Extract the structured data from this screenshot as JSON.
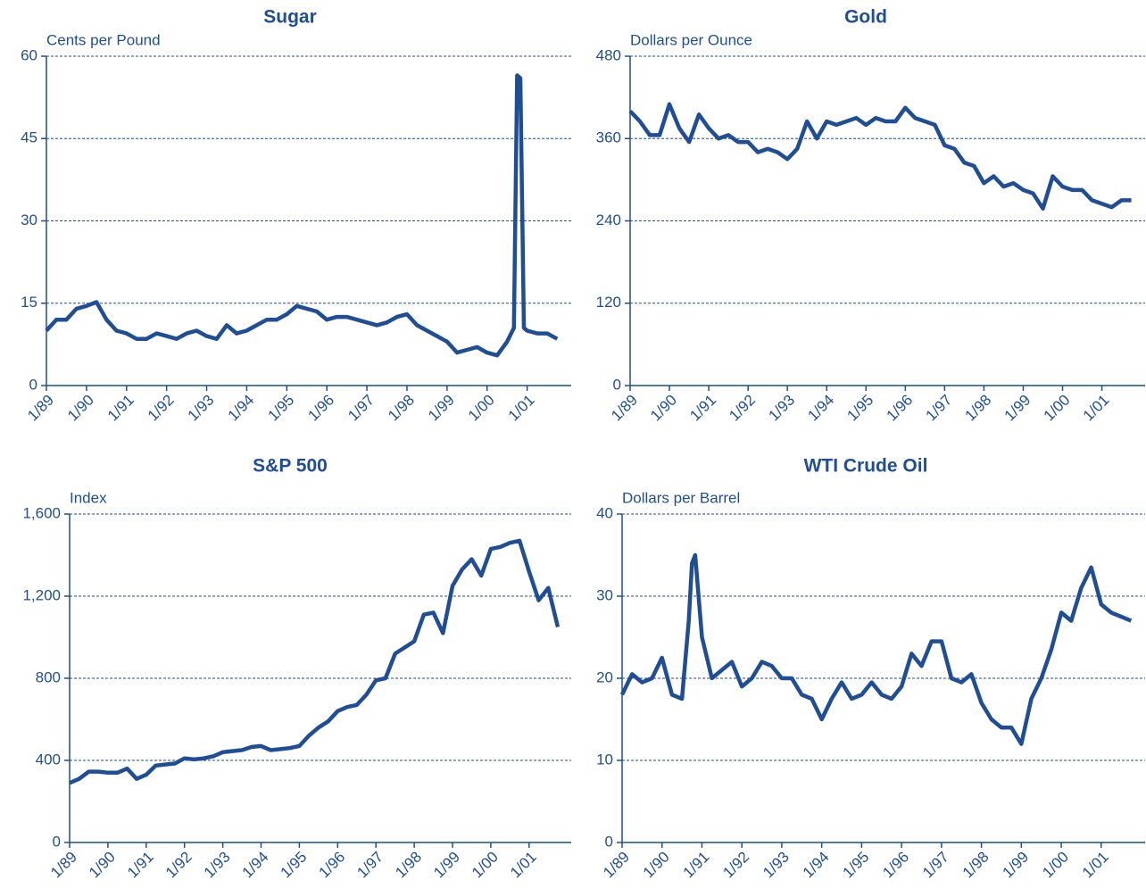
{
  "chart_data": [
    {
      "type": "line",
      "title": "Sugar",
      "y_label": "Cents per Pound",
      "color": "#1f4e96",
      "grid": true,
      "xlim": [
        1989,
        2002.1
      ],
      "ylim": [
        0,
        60
      ],
      "yticks": [
        0,
        15,
        30,
        45,
        60
      ],
      "xticks": [
        {
          "value": 1989,
          "label": "1/89"
        },
        {
          "value": 1990,
          "label": "1/90"
        },
        {
          "value": 1991,
          "label": "1/91"
        },
        {
          "value": 1992,
          "label": "1/92"
        },
        {
          "value": 1993,
          "label": "1/93"
        },
        {
          "value": 1994,
          "label": "1/94"
        },
        {
          "value": 1995,
          "label": "1/95"
        },
        {
          "value": 1996,
          "label": "1/96"
        },
        {
          "value": 1997,
          "label": "1/97"
        },
        {
          "value": 1998,
          "label": "1/98"
        },
        {
          "value": 1999,
          "label": "1/99"
        },
        {
          "value": 2000,
          "label": "1/00"
        },
        {
          "value": 2001,
          "label": "1/01"
        }
      ],
      "x": [
        1989,
        1989.25,
        1989.5,
        1989.75,
        1990,
        1990.25,
        1990.5,
        1990.75,
        1991,
        1991.25,
        1991.5,
        1991.75,
        1992,
        1992.25,
        1992.5,
        1992.75,
        1993,
        1993.25,
        1993.5,
        1993.75,
        1994,
        1994.25,
        1994.5,
        1994.75,
        1995,
        1995.25,
        1995.5,
        1995.75,
        1996,
        1996.25,
        1996.5,
        1996.75,
        1997,
        1997.25,
        1997.5,
        1997.75,
        1998,
        1998.25,
        1998.5,
        1998.75,
        1999,
        1999.25,
        1999.5,
        1999.75,
        2000,
        2000.25,
        2000.5,
        2000.67,
        2000.75,
        2000.83,
        2000.92,
        2001,
        2001.25,
        2001.5,
        2001.75
      ],
      "values": [
        10,
        12,
        12,
        14,
        14.5,
        15.2,
        12,
        10,
        9.5,
        8.5,
        8.5,
        9.5,
        9,
        8.5,
        9.5,
        10,
        9,
        8.5,
        11,
        9.5,
        10,
        11,
        12,
        12,
        13,
        14.5,
        14,
        13.5,
        12,
        12.5,
        12.5,
        12,
        11.5,
        11,
        11.5,
        12.5,
        13,
        11,
        10,
        9,
        8,
        6,
        6.5,
        7,
        6,
        5.5,
        8,
        10.5,
        56.5,
        56,
        10.5,
        10,
        9.5,
        9.5,
        8.5
      ]
    },
    {
      "type": "line",
      "title": "Gold",
      "y_label": "Dollars per Ounce",
      "color": "#1f4e96",
      "grid": true,
      "xlim": [
        1989,
        2002.1
      ],
      "ylim": [
        0,
        480
      ],
      "yticks": [
        0,
        120,
        240,
        360,
        480
      ],
      "xticks": [
        {
          "value": 1989,
          "label": "1/89"
        },
        {
          "value": 1990,
          "label": "1/90"
        },
        {
          "value": 1991,
          "label": "1/91"
        },
        {
          "value": 1992,
          "label": "1/92"
        },
        {
          "value": 1993,
          "label": "1/93"
        },
        {
          "value": 1994,
          "label": "1/94"
        },
        {
          "value": 1995,
          "label": "1/95"
        },
        {
          "value": 1996,
          "label": "1/96"
        },
        {
          "value": 1997,
          "label": "1/97"
        },
        {
          "value": 1998,
          "label": "1/98"
        },
        {
          "value": 1999,
          "label": "1/99"
        },
        {
          "value": 2000,
          "label": "1/00"
        },
        {
          "value": 2001,
          "label": "1/01"
        }
      ],
      "x": [
        1989,
        1989.25,
        1989.5,
        1989.75,
        1990,
        1990.25,
        1990.5,
        1990.75,
        1991,
        1991.25,
        1991.5,
        1991.75,
        1992,
        1992.25,
        1992.5,
        1992.75,
        1993,
        1993.25,
        1993.5,
        1993.75,
        1994,
        1994.25,
        1994.5,
        1994.75,
        1995,
        1995.25,
        1995.5,
        1995.75,
        1996,
        1996.25,
        1996.5,
        1996.75,
        1997,
        1997.25,
        1997.5,
        1997.75,
        1998,
        1998.25,
        1998.5,
        1998.75,
        1999,
        1999.25,
        1999.5,
        1999.75,
        2000,
        2000.25,
        2000.5,
        2000.75,
        2001,
        2001.25,
        2001.5,
        2001.75
      ],
      "values": [
        400,
        385,
        365,
        365,
        410,
        375,
        355,
        395,
        375,
        360,
        365,
        355,
        355,
        340,
        345,
        340,
        330,
        345,
        385,
        360,
        385,
        380,
        385,
        390,
        380,
        390,
        385,
        385,
        405,
        390,
        385,
        380,
        350,
        345,
        325,
        320,
        295,
        305,
        290,
        295,
        285,
        280,
        258,
        305,
        290,
        285,
        285,
        270,
        265,
        260,
        270,
        270
      ]
    },
    {
      "type": "line",
      "title": "S&P 500",
      "y_label": "Index",
      "color": "#1f4e96",
      "grid": true,
      "xlim": [
        1989,
        2002.1
      ],
      "ylim": [
        0,
        1600
      ],
      "yticks": [
        0,
        400,
        800,
        {
          "value": 1200,
          "label": "1,200"
        },
        {
          "value": 1600,
          "label": "1,600"
        }
      ],
      "xticks": [
        {
          "value": 1989,
          "label": "1/89"
        },
        {
          "value": 1990,
          "label": "1/90"
        },
        {
          "value": 1991,
          "label": "1/91"
        },
        {
          "value": 1992,
          "label": "1/92"
        },
        {
          "value": 1993,
          "label": "1/93"
        },
        {
          "value": 1994,
          "label": "1/94"
        },
        {
          "value": 1995,
          "label": "1/95"
        },
        {
          "value": 1996,
          "label": "1/96"
        },
        {
          "value": 1997,
          "label": "1/97"
        },
        {
          "value": 1998,
          "label": "1/98"
        },
        {
          "value": 1999,
          "label": "1/99"
        },
        {
          "value": 2000,
          "label": "1/00"
        },
        {
          "value": 2001,
          "label": "1/01"
        }
      ],
      "x": [
        1989,
        1989.25,
        1989.5,
        1989.75,
        1990,
        1990.25,
        1990.5,
        1990.75,
        1991,
        1991.25,
        1991.5,
        1991.75,
        1992,
        1992.25,
        1992.5,
        1992.75,
        1993,
        1993.25,
        1993.5,
        1993.75,
        1994,
        1994.25,
        1994.5,
        1994.75,
        1995,
        1995.25,
        1995.5,
        1995.75,
        1996,
        1996.25,
        1996.5,
        1996.75,
        1997,
        1997.25,
        1997.5,
        1997.75,
        1998,
        1998.25,
        1998.5,
        1998.75,
        1999,
        1999.25,
        1999.5,
        1999.75,
        2000,
        2000.25,
        2000.5,
        2000.75,
        2001,
        2001.25,
        2001.5,
        2001.75
      ],
      "values": [
        290,
        310,
        345,
        345,
        340,
        340,
        360,
        310,
        330,
        375,
        380,
        385,
        410,
        405,
        410,
        420,
        440,
        445,
        450,
        465,
        470,
        450,
        455,
        460,
        470,
        520,
        560,
        590,
        640,
        660,
        670,
        720,
        790,
        800,
        920,
        950,
        980,
        1110,
        1120,
        1020,
        1250,
        1330,
        1380,
        1300,
        1430,
        1440,
        1460,
        1470,
        1320,
        1180,
        1240,
        1050
      ]
    },
    {
      "type": "line",
      "title": "WTI Crude Oil",
      "y_label": "Dollars per Barrel",
      "color": "#1f4e96",
      "grid": true,
      "xlim": [
        1989,
        2002.1
      ],
      "ylim": [
        0,
        40
      ],
      "yticks": [
        0,
        10,
        20,
        30,
        40
      ],
      "xticks": [
        {
          "value": 1989,
          "label": "1/89"
        },
        {
          "value": 1990,
          "label": "1/90"
        },
        {
          "value": 1991,
          "label": "1/91"
        },
        {
          "value": 1992,
          "label": "1/92"
        },
        {
          "value": 1993,
          "label": "1/93"
        },
        {
          "value": 1994,
          "label": "1/94"
        },
        {
          "value": 1995,
          "label": "1/95"
        },
        {
          "value": 1996,
          "label": "1/96"
        },
        {
          "value": 1997,
          "label": "1/97"
        },
        {
          "value": 1998,
          "label": "1/98"
        },
        {
          "value": 1999,
          "label": "1/99"
        },
        {
          "value": 2000,
          "label": "1/00"
        },
        {
          "value": 2001,
          "label": "1/01"
        }
      ],
      "x": [
        1989,
        1989.25,
        1989.5,
        1989.75,
        1990,
        1990.25,
        1990.5,
        1990.67,
        1990.75,
        1990.83,
        1991,
        1991.25,
        1991.5,
        1991.75,
        1992,
        1992.25,
        1992.5,
        1992.75,
        1993,
        1993.25,
        1993.5,
        1993.75,
        1994,
        1994.25,
        1994.5,
        1994.75,
        1995,
        1995.25,
        1995.5,
        1995.75,
        1996,
        1996.25,
        1996.5,
        1996.75,
        1997,
        1997.25,
        1997.5,
        1997.75,
        1998,
        1998.25,
        1998.5,
        1998.75,
        1999,
        1999.25,
        1999.5,
        1999.75,
        2000,
        2000.25,
        2000.5,
        2000.75,
        2001,
        2001.25,
        2001.5,
        2001.75
      ],
      "values": [
        18,
        20.5,
        19.5,
        20,
        22.5,
        18,
        17.5,
        27,
        34,
        35,
        25,
        20,
        21,
        22,
        19,
        20,
        22,
        21.5,
        20,
        20,
        18,
        17.5,
        15,
        17.5,
        19.5,
        17.5,
        18,
        19.5,
        18,
        17.5,
        19,
        23,
        21.5,
        24.5,
        24.5,
        20,
        19.5,
        20.5,
        17,
        15,
        14,
        14,
        12,
        17.5,
        20,
        23.5,
        28,
        27,
        31,
        33.5,
        29,
        28,
        27.5,
        27
      ]
    }
  ]
}
